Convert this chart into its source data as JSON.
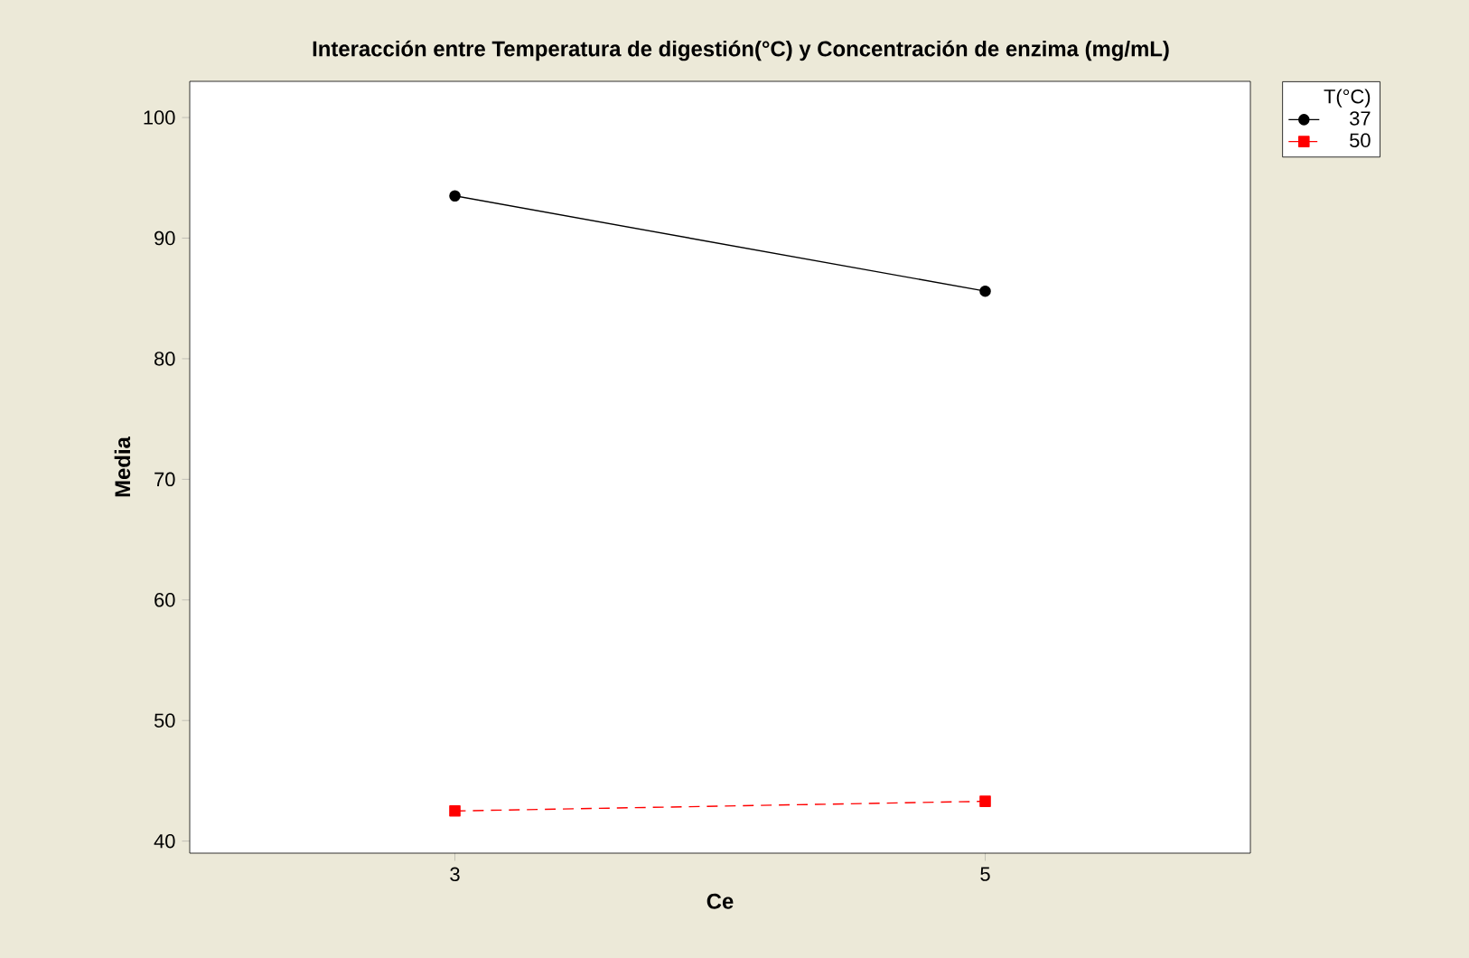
{
  "chart_data": {
    "type": "line",
    "title": "Interacción entre Temperatura de digestión(°C) y Concentración de enzima (mg/mL)",
    "xlabel": "Ce",
    "ylabel": "Media",
    "legend_title": "T(°C)",
    "categories": [
      "3",
      "5"
    ],
    "series": [
      {
        "name": "37",
        "color": "#000000",
        "values": [
          93.5,
          85.6
        ],
        "marker": "circle",
        "line_style": "solid"
      },
      {
        "name": "50",
        "color": "#ff0000",
        "values": [
          42.5,
          43.3
        ],
        "marker": "square",
        "line_style": "dashed"
      }
    ],
    "ylim": [
      39,
      103
    ],
    "yticks": [
      40,
      50,
      60,
      70,
      80,
      90,
      100
    ],
    "grid": false,
    "legend": "top right"
  }
}
